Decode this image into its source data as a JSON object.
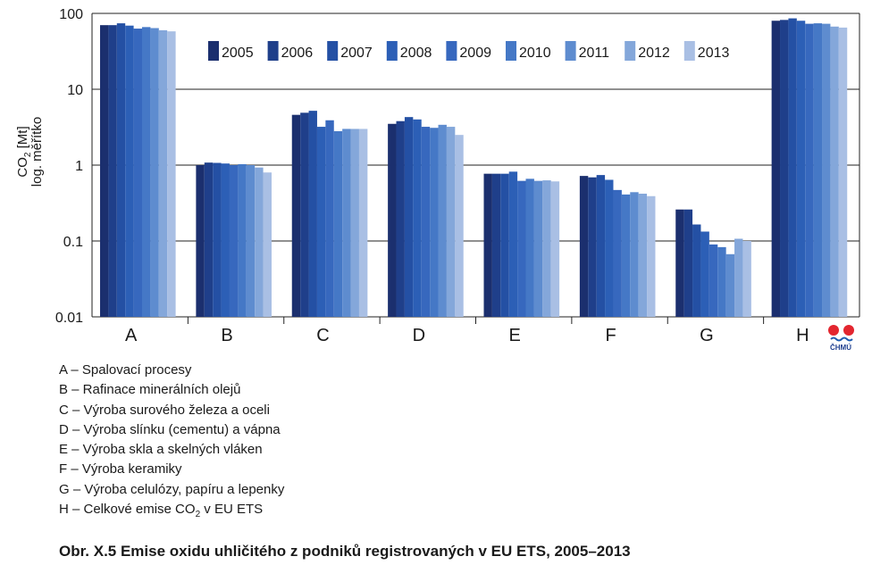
{
  "chart_data": {
    "type": "bar",
    "title": "",
    "ylabel": {
      "main": "CO",
      "sub": "2",
      "unit": " [Mt]",
      "line2": "log. měřítko"
    },
    "yscale": "log",
    "ylim": [
      0.01,
      100
    ],
    "yticks": [
      "100",
      "10",
      "1",
      "0.1",
      "0.01"
    ],
    "grid": true,
    "legend_position": "top-right",
    "categories": [
      "A",
      "B",
      "C",
      "D",
      "E",
      "F",
      "G",
      "H"
    ],
    "series": [
      {
        "name": "2005",
        "color": "#1b2f6e",
        "values": [
          70,
          1.0,
          4.6,
          3.5,
          0.77,
          0.72,
          0.26,
          80
        ]
      },
      {
        "name": "2006",
        "color": "#1f3f8a",
        "values": [
          70,
          1.08,
          4.9,
          3.8,
          0.77,
          0.69,
          0.26,
          82
        ]
      },
      {
        "name": "2007",
        "color": "#2450a4",
        "values": [
          74,
          1.07,
          5.2,
          4.3,
          0.77,
          0.74,
          0.165,
          86
        ]
      },
      {
        "name": "2008",
        "color": "#2c5fb6",
        "values": [
          69,
          1.05,
          3.2,
          4.0,
          0.82,
          0.64,
          0.133,
          80
        ]
      },
      {
        "name": "2009",
        "color": "#3768be",
        "values": [
          63,
          1.0,
          3.9,
          3.2,
          0.62,
          0.47,
          0.09,
          73
        ]
      },
      {
        "name": "2010",
        "color": "#4578c6",
        "values": [
          66,
          1.03,
          2.8,
          3.1,
          0.66,
          0.41,
          0.083,
          74
        ]
      },
      {
        "name": "2011",
        "color": "#5e8ccf",
        "values": [
          64,
          1.0,
          3.0,
          3.4,
          0.62,
          0.44,
          0.067,
          73
        ]
      },
      {
        "name": "2012",
        "color": "#84a7da",
        "values": [
          60,
          0.93,
          3.0,
          3.2,
          0.63,
          0.42,
          0.107,
          67
        ]
      },
      {
        "name": "2013",
        "color": "#a9bfe4",
        "values": [
          58,
          0.8,
          3.0,
          2.5,
          0.61,
          0.39,
          0.1,
          65
        ]
      }
    ]
  },
  "logo": {
    "text": "ČHMÚ",
    "colors": [
      "#e3262f",
      "#e3262f",
      "#1f5cb0"
    ]
  },
  "notes": [
    {
      "text": "A – Spalovací procesy"
    },
    {
      "text": "B – Rafinace minerálních olejů"
    },
    {
      "text": "C – Výroba surového železa a oceli"
    },
    {
      "text": "D – Výroba slínku (cementu) a vápna"
    },
    {
      "text": "E – Výroba skla a skelných vláken"
    },
    {
      "text": "F – Výroba keramiky"
    },
    {
      "text": "G – Výroba celulózy, papíru a lepenky"
    },
    {
      "text": "H – Celkové emise CO",
      "sub": "2",
      "text_after": " v EU ETS"
    }
  ],
  "caption": "Obr. X.5  Emise oxidu uhličitého z podniků registrovaných v EU ETS, 2005–2013"
}
